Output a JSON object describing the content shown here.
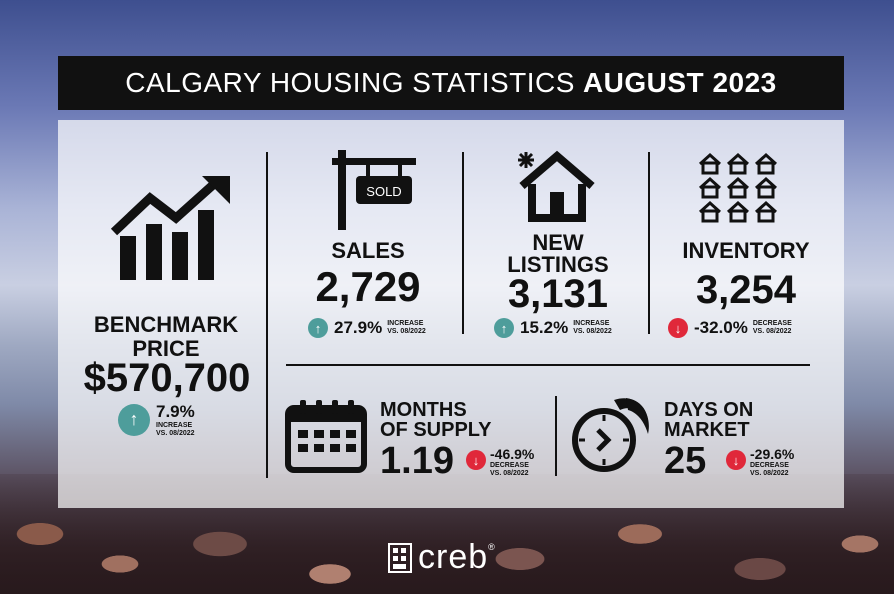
{
  "title": {
    "regular": "CALGARY HOUSING STATISTICS",
    "bold": "AUGUST 2023"
  },
  "benchmark": {
    "label_line1": "BENCHMARK",
    "label_line2": "PRICE",
    "value": "$570,700",
    "change": "7.9%",
    "direction": "up",
    "change_word": "INCREASE",
    "period": "VS. 08/2022"
  },
  "sales": {
    "label": "SALES",
    "sign_text": "SOLD",
    "value": "2,729",
    "change": "27.9%",
    "direction": "up",
    "change_word": "INCREASE",
    "period": "VS. 08/2022"
  },
  "new_listings": {
    "label_line1": "NEW",
    "label_line2": "LISTINGS",
    "value": "3,131",
    "change": "15.2%",
    "direction": "up",
    "change_word": "INCREASE",
    "period": "VS. 08/2022"
  },
  "inventory": {
    "label": "INVENTORY",
    "value": "3,254",
    "change": "-32.0%",
    "direction": "down",
    "change_word": "DECREASE",
    "period": "VS. 08/2022"
  },
  "months_supply": {
    "label_line1": "MONTHS",
    "label_line2": "OF SUPPLY",
    "value": "1.19",
    "change": "-46.9%",
    "direction": "down",
    "change_word": "DECREASE",
    "period": "VS. 08/2022"
  },
  "days_on_market": {
    "label_line1": "DAYS ON",
    "label_line2": "MARKET",
    "value": "25",
    "change": "-29.6%",
    "direction": "down",
    "change_word": "DECREASE",
    "period": "VS. 08/2022"
  },
  "brand": {
    "name": "creb",
    "mark": "®"
  },
  "colors": {
    "up": "#4e9d9b",
    "down": "#e0283a",
    "title_bg": "#111111"
  }
}
